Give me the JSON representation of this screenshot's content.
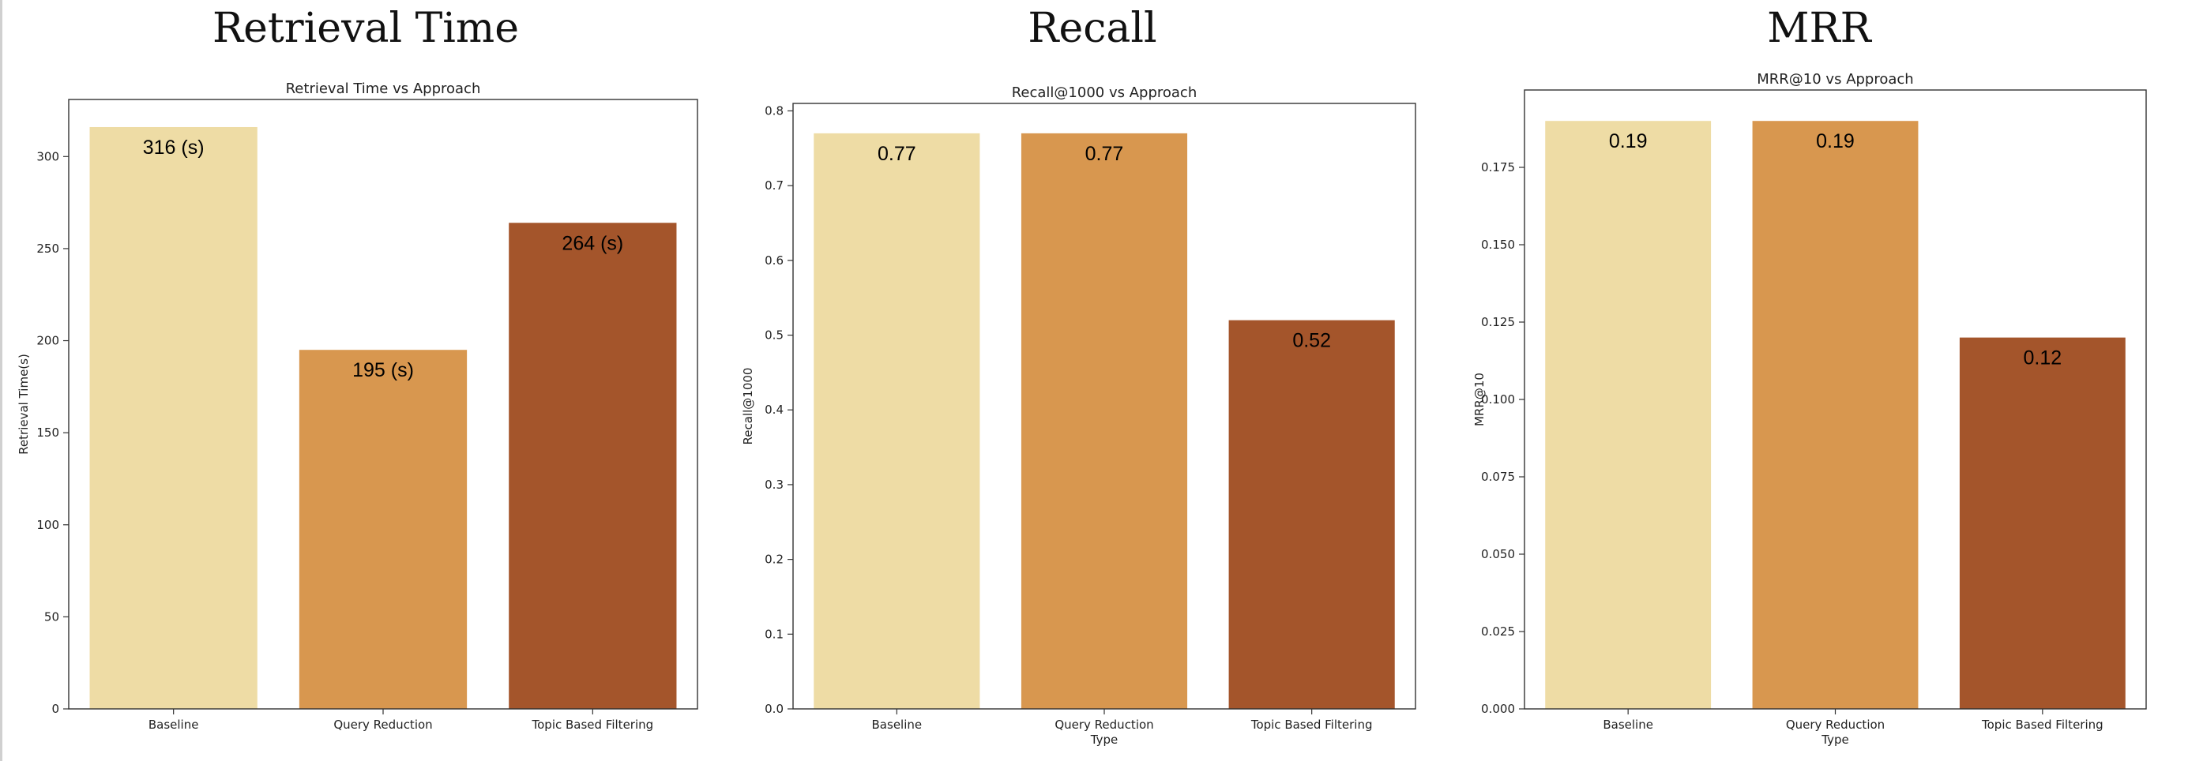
{
  "panels": [
    {
      "heading": "Retrieval Time"
    },
    {
      "heading": "Recall"
    },
    {
      "heading": "MRR"
    }
  ],
  "chart_data": [
    {
      "type": "bar",
      "title": "Retrieval Time vs Approach",
      "xlabel": "",
      "ylabel": "Retrieval Time(s)",
      "categories": [
        "Baseline",
        "Query Reduction",
        "Topic Based Filtering"
      ],
      "values": [
        316,
        195,
        264
      ],
      "data_labels": [
        "316 (s)",
        "195 (s)",
        "264 (s)"
      ],
      "ylim": [
        0,
        331
      ],
      "yticks": [
        0,
        50,
        100,
        150,
        200,
        250,
        300
      ],
      "ytick_labels": [
        "0",
        "50",
        "100",
        "150",
        "200",
        "250",
        "300"
      ],
      "colors": [
        "#EEDCA5",
        "#D8974F",
        "#A4552B"
      ],
      "grid": false,
      "legend": "none"
    },
    {
      "type": "bar",
      "title": "Recall@1000 vs Approach",
      "xlabel": "Type",
      "ylabel": "Recall@1000",
      "categories": [
        "Baseline",
        "Query Reduction",
        "Topic Based Filtering"
      ],
      "values": [
        0.77,
        0.77,
        0.52
      ],
      "data_labels": [
        "0.77",
        "0.77",
        "0.52"
      ],
      "ylim": [
        0,
        0.81
      ],
      "yticks": [
        0,
        0.1,
        0.2,
        0.3,
        0.4,
        0.5,
        0.6,
        0.7,
        0.8
      ],
      "ytick_labels": [
        "0.0",
        "0.1",
        "0.2",
        "0.3",
        "0.4",
        "0.5",
        "0.6",
        "0.7",
        "0.8"
      ],
      "colors": [
        "#EEDCA5",
        "#D8974F",
        "#A4552B"
      ],
      "grid": false,
      "legend": "none"
    },
    {
      "type": "bar",
      "title": "MRR@10 vs Approach",
      "xlabel": "Type",
      "ylabel": "MRR@10",
      "categories": [
        "Baseline",
        "Query Reduction",
        "Topic Based Filtering"
      ],
      "values": [
        0.19,
        0.19,
        0.12
      ],
      "data_labels": [
        "0.19",
        "0.19",
        "0.12"
      ],
      "ylim": [
        0,
        0.2
      ],
      "yticks": [
        0,
        0.025,
        0.05,
        0.075,
        0.1,
        0.125,
        0.15,
        0.175
      ],
      "ytick_labels": [
        "0.000",
        "0.025",
        "0.050",
        "0.075",
        "0.100",
        "0.125",
        "0.150",
        "0.175"
      ],
      "colors": [
        "#EEDCA5",
        "#D8974F",
        "#A4552B"
      ],
      "grid": false,
      "legend": "none"
    }
  ]
}
